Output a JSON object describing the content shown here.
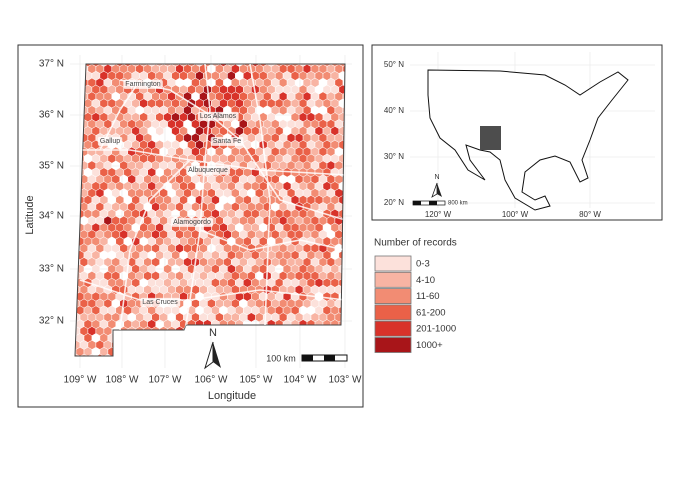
{
  "main_map": {
    "lat_ticks": [
      "37° N",
      "36° N",
      "35° N",
      "34° N",
      "33° N",
      "32° N"
    ],
    "lon_ticks": [
      "109° W",
      "108° W",
      "107° W",
      "106° W",
      "105° W",
      "104° W",
      "103° W"
    ],
    "x_axis_label": "Longitude",
    "y_axis_label": "Latitude",
    "places": [
      "Farmington",
      "Los Alamos",
      "Gallup",
      "Santa Fe",
      "Albuquerque",
      "Alamogordo",
      "Las Cruces"
    ],
    "north_label": "N",
    "scale_label": "100 km"
  },
  "inset_map": {
    "lat_ticks": [
      "50° N",
      "40° N",
      "30° N",
      "20° N"
    ],
    "lon_ticks": [
      "120° W",
      "100° W",
      "80° W"
    ],
    "north_label": "N",
    "scale_label": "800 km"
  },
  "legend": {
    "title": "Number of records",
    "items": [
      {
        "label": "0-3",
        "color": "#fce1db"
      },
      {
        "label": "4-10",
        "color": "#f8b4a3"
      },
      {
        "label": "11-60",
        "color": "#f28c73"
      },
      {
        "label": "61-200",
        "color": "#ea6148"
      },
      {
        "label": "201-1000",
        "color": "#d8322a"
      },
      {
        "label": "1000+",
        "color": "#a81519"
      }
    ]
  }
}
